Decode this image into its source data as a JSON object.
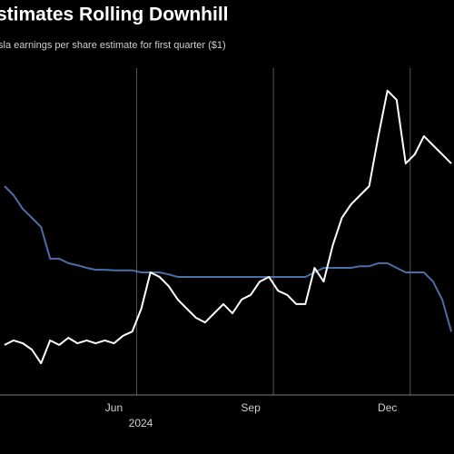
{
  "chart_data": {
    "type": "line",
    "title": "stimates Rolling Downhill",
    "subtitle": "sla earnings per share estimate for first quarter ($1)",
    "categories": [
      null,
      null,
      null,
      null,
      null,
      null,
      null,
      null,
      null,
      null,
      null,
      null,
      "Jun",
      null,
      null,
      null,
      null,
      null,
      null,
      null,
      null,
      null,
      null,
      null,
      null,
      null,
      null,
      "Sep",
      null,
      null,
      null,
      null,
      null,
      null,
      null,
      null,
      null,
      null,
      null,
      null,
      null,
      null,
      "Dec",
      null,
      null,
      null,
      null,
      null,
      null,
      null
    ],
    "year_label": "2024",
    "ylim": [
      0,
      100
    ],
    "grid": true,
    "series": [
      {
        "color": "#4a6fa5",
        "values": [
          63.9,
          61.1,
          56.9,
          54.2,
          51.4,
          41.7,
          41.7,
          40.3,
          39.7,
          38.9,
          38.3,
          38.3,
          38.1,
          38.1,
          38.1,
          37.5,
          37.5,
          37.5,
          36.9,
          36.1,
          36.1,
          36.1,
          36.1,
          36.1,
          36.1,
          36.1,
          36.1,
          36.1,
          36.1,
          36.1,
          36.1,
          36.1,
          36.1,
          36.1,
          37.5,
          38.9,
          38.9,
          38.9,
          38.9,
          39.4,
          39.4,
          40.3,
          40.3,
          38.9,
          37.5,
          37.5,
          37.5,
          34.7,
          29.2,
          19.4
        ]
      },
      {
        "color": "#ffffff",
        "values": [
          15.3,
          16.7,
          15.8,
          13.9,
          9.7,
          16.7,
          15.3,
          17.5,
          15.8,
          16.7,
          15.8,
          16.7,
          15.8,
          18.1,
          19.4,
          26.4,
          37.5,
          36.1,
          33.3,
          29.2,
          26.4,
          23.6,
          22.2,
          25,
          27.8,
          25,
          29.2,
          30.6,
          34.7,
          36.1,
          31.9,
          30.6,
          27.8,
          27.8,
          38.9,
          34.7,
          45.8,
          54.2,
          58.3,
          61.1,
          63.9,
          79.2,
          93.1,
          90.3,
          70.8,
          73.6,
          79.2,
          76.4,
          73.6,
          70.8
        ]
      }
    ]
  }
}
